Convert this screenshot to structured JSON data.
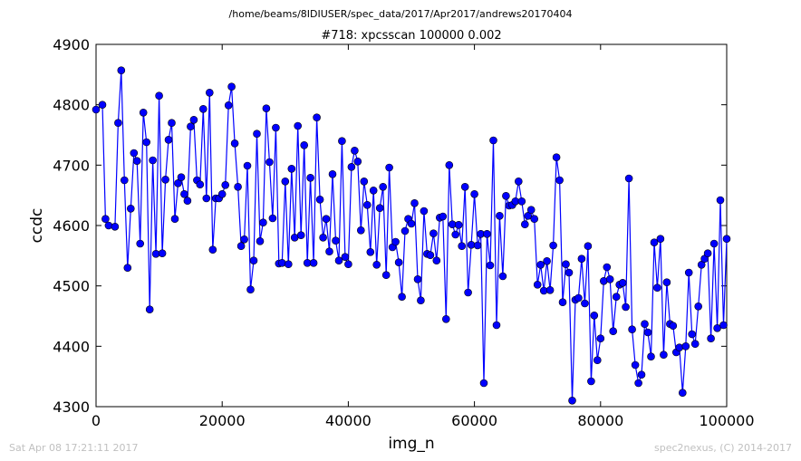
{
  "figure": {
    "suptitle": "/home/beams/8IDIUSER/spec_data/2017/Apr2017/andrews20170404",
    "footer_left": "Sat Apr 08 17:21:11 2017",
    "footer_right": "spec2nexus, (C) 2014-2017"
  },
  "chart_data": {
    "type": "line",
    "title": "#718: xpcsscan 100000 0.002",
    "xlabel": "img_n",
    "ylabel": "ccdc",
    "xlim": [
      0,
      100000
    ],
    "ylim": [
      4300,
      4900
    ],
    "xticks": [
      0,
      20000,
      40000,
      60000,
      80000,
      100000
    ],
    "xtick_labels": [
      "0",
      "20000",
      "40000",
      "60000",
      "80000",
      "100000"
    ],
    "yticks": [
      4300,
      4400,
      4500,
      4600,
      4700,
      4800,
      4900
    ],
    "ytick_labels": [
      "4300",
      "4400",
      "4500",
      "4600",
      "4700",
      "4800",
      "4900"
    ],
    "grid": false,
    "line_color": "#0000ff",
    "marker_color": "#0000ff",
    "marker": "circle",
    "series": [
      {
        "x": [
          0,
          1000,
          1500,
          2000,
          3000,
          3500,
          4000,
          4500,
          5000,
          5500,
          6000,
          6500,
          7000,
          7500,
          8000,
          8500,
          9000,
          9500,
          10000,
          10500,
          11000,
          11500,
          12000,
          12500,
          13000,
          13500,
          14000,
          14500,
          15000,
          15500,
          16000,
          16500,
          17000,
          17500,
          18000,
          18500,
          19000,
          19500,
          20000,
          20500,
          21000,
          21500,
          22000,
          22500,
          23000,
          23500,
          24000,
          24500,
          25000,
          25500,
          26000,
          26500,
          27000,
          27500,
          28000,
          28500,
          29000,
          29500,
          30000,
          30500,
          31000,
          31500,
          32000,
          32500,
          33000,
          33500,
          34000,
          34500,
          35000,
          35500,
          36000,
          36500,
          37000,
          37500,
          38000,
          38500,
          39000,
          39500,
          40000,
          40500,
          41000,
          41500,
          42000,
          42500,
          43000,
          43500,
          44000,
          44500,
          45000,
          45500,
          46000,
          46500,
          47000,
          47500,
          48000,
          48500,
          49000,
          49500,
          50000,
          50500,
          51000,
          51500,
          52000,
          52500,
          53000,
          53500,
          54000,
          54500,
          55000,
          55500,
          56000,
          56500,
          57000,
          57500,
          58000,
          58500,
          59000,
          59500,
          60000,
          60500,
          61000,
          61500,
          62000,
          62500,
          63000,
          63500,
          64000,
          64500,
          65000,
          65500,
          66000,
          66500,
          67000,
          67500,
          68000,
          68500,
          69000,
          69500,
          70000,
          70500,
          71000,
          71500,
          72000,
          72500,
          73000,
          73500,
          74000,
          74500,
          75000,
          75500,
          76000,
          76500,
          77000,
          77500,
          78000,
          78500,
          79000,
          79500,
          80000,
          80500,
          81000,
          81500,
          82000,
          82500,
          83000,
          83500,
          84000,
          84500,
          85000,
          85500,
          86000,
          86500,
          87000,
          87500,
          88000,
          88500,
          89000,
          89500,
          90000,
          90500,
          91000,
          91500,
          92000,
          92500,
          93000,
          93500,
          94000,
          94500,
          95000,
          95500,
          96000,
          96500,
          97000,
          97500,
          98000,
          98500,
          99000,
          99500,
          100000
        ],
        "y": [
          4792,
          4800,
          4611,
          4600,
          4598,
          4770,
          4857,
          4675,
          4530,
          4628,
          4720,
          4707,
          4570,
          4787,
          4738,
          4461,
          4708,
          4553,
          4815,
          4554,
          4676,
          4742,
          4770,
          4611,
          4670,
          4680,
          4652,
          4641,
          4764,
          4775,
          4675,
          4668,
          4793,
          4645,
          4820,
          4560,
          4645,
          4645,
          4652,
          4667,
          4799,
          4830,
          4736,
          4664,
          4566,
          4577,
          4699,
          4494,
          4542,
          4752,
          4574,
          4605,
          4794,
          4705,
          4612,
          4762,
          4537,
          4538,
          4673,
          4536,
          4694,
          4580,
          4765,
          4584,
          4733,
          4538,
          4679,
          4538,
          4779,
          4643,
          4580,
          4611,
          4557,
          4685,
          4575,
          4542,
          4740,
          4548,
          4536,
          4697,
          4724,
          4706,
          4592,
          4673,
          4634,
          4556,
          4658,
          4535,
          4629,
          4664,
          4518,
          4696,
          4564,
          4573,
          4539,
          4482,
          4591,
          4611,
          4603,
          4637,
          4511,
          4476,
          4624,
          4553,
          4551,
          4587,
          4542,
          4613,
          4615,
          4445,
          4700,
          4602,
          4585,
          4601,
          4566,
          4664,
          4489,
          4568,
          4652,
          4567,
          4586,
          4339,
          4586,
          4534,
          4741,
          4435,
          4616,
          4516,
          4649,
          4633,
          4634,
          4640,
          4673,
          4640,
          4602,
          4616,
          4626,
          4611,
          4502,
          4535,
          4492,
          4541,
          4493,
          4567,
          4713,
          4675,
          4473,
          4536,
          4522,
          4310,
          4477,
          4480,
          4545,
          4471,
          4566,
          4342,
          4451,
          4377,
          4413,
          4508,
          4531,
          4511,
          4425,
          4482,
          4502,
          4505,
          4465,
          4678,
          4428,
          4369,
          4339,
          4353,
          4437,
          4423,
          4383,
          4572,
          4497,
          4578,
          4386,
          4506,
          4437,
          4434,
          4390,
          4398,
          4323,
          4400,
          4522,
          4420,
          4404,
          4466,
          4535,
          4545,
          4554,
          4413,
          4570,
          4430,
          4642,
          4435,
          4578
        ]
      }
    ]
  }
}
